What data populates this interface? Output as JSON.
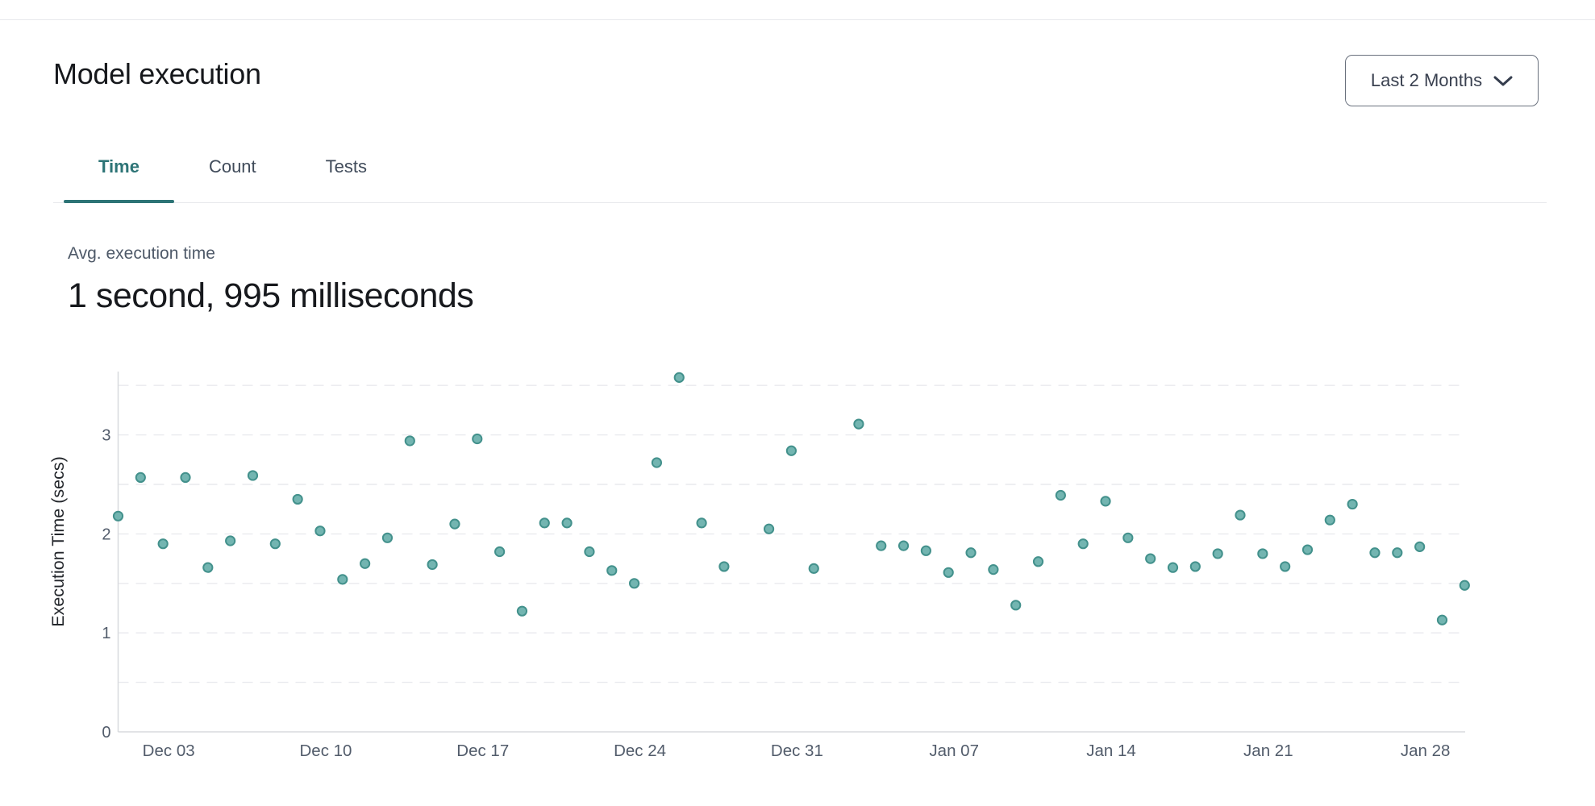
{
  "header": {
    "title": "Model execution",
    "range_label": "Last 2 Months"
  },
  "tabs": [
    {
      "label": "Time",
      "active": true
    },
    {
      "label": "Count",
      "active": false
    },
    {
      "label": "Tests",
      "active": false
    }
  ],
  "stat": {
    "label": "Avg. execution time",
    "value": "1 second, 995 milliseconds"
  },
  "colors": {
    "accent_teal": "#2d7476",
    "point_fill": "#73b5b1",
    "point_stroke": "#43918c",
    "grid_line": "#e9eaee",
    "axis_line": "#d8dade",
    "tick_text": "#525c6b",
    "axis_title_text": "#24272c"
  },
  "chart_data": {
    "type": "scatter",
    "title": "",
    "xlabel": "",
    "ylabel": "Execution Time (secs)",
    "ylim": [
      0,
      3.7
    ],
    "yticks": [
      0,
      1,
      2,
      3
    ],
    "grid": "horizontal dashed lines every 0.5",
    "legend": "none",
    "xtick_labels": [
      "Dec 03",
      "Dec 10",
      "Dec 17",
      "Dec 24",
      "Dec 31",
      "Jan 07",
      "Jan 14",
      "Jan 21",
      "Jan 28"
    ],
    "xtick_day_index": [
      2,
      9,
      16,
      23,
      30,
      37,
      44,
      51,
      58
    ],
    "x": [
      "Dec 01",
      "Dec 02",
      "Dec 03",
      "Dec 04",
      "Dec 05",
      "Dec 06",
      "Dec 07",
      "Dec 08",
      "Dec 09",
      "Dec 10",
      "Dec 11",
      "Dec 12",
      "Dec 13",
      "Dec 14",
      "Dec 15",
      "Dec 16",
      "Dec 17",
      "Dec 18",
      "Dec 19",
      "Dec 20",
      "Dec 21",
      "Dec 22",
      "Dec 23",
      "Dec 24",
      "Dec 25",
      "Dec 26",
      "Dec 27",
      "Dec 28",
      "Dec 29",
      "Dec 30",
      "Dec 31",
      "Jan 01",
      "Jan 02",
      "Jan 03",
      "Jan 04",
      "Jan 05",
      "Jan 06",
      "Jan 07",
      "Jan 08",
      "Jan 09",
      "Jan 10",
      "Jan 11",
      "Jan 12",
      "Jan 13",
      "Jan 14",
      "Jan 15",
      "Jan 16",
      "Jan 17",
      "Jan 18",
      "Jan 19",
      "Jan 20",
      "Jan 21",
      "Jan 22",
      "Jan 23",
      "Jan 24",
      "Jan 25",
      "Jan 26",
      "Jan 27",
      "Jan 28",
      "Jan 29",
      "Jan 30"
    ],
    "values": [
      2.18,
      2.57,
      1.9,
      2.57,
      1.66,
      1.93,
      2.59,
      1.9,
      2.35,
      2.03,
      1.54,
      1.7,
      1.96,
      2.94,
      1.69,
      2.1,
      2.96,
      1.82,
      1.22,
      2.11,
      2.11,
      1.82,
      1.63,
      1.5,
      2.72,
      3.58,
      2.11,
      1.67,
      null,
      2.05,
      2.84,
      1.65,
      null,
      3.11,
      1.88,
      1.88,
      1.83,
      1.61,
      1.81,
      1.64,
      1.28,
      1.72,
      2.39,
      1.9,
      2.33,
      1.96,
      1.75,
      1.66,
      1.67,
      1.8,
      2.19,
      1.8,
      1.67,
      1.84,
      2.14,
      2.3,
      1.81,
      1.81,
      1.87,
      1.13,
      1.48
    ]
  }
}
